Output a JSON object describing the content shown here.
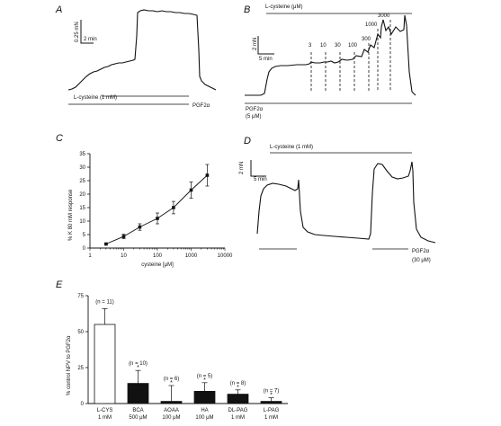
{
  "panels": {
    "A": {
      "label": "A",
      "scale_y": "0.25 mN",
      "scale_x": "2 min",
      "bar1_label": "L-cysteine (1 mM)",
      "bar2_label": "PGF2α"
    },
    "B": {
      "label": "B",
      "top_bar_label": "L-cysteine (μM)",
      "scale_y": "2 mN",
      "scale_x": "5 min",
      "concentrations": [
        "3",
        "10",
        "30",
        "100",
        "300",
        "1000",
        "3000"
      ],
      "bottom_label_1": "PGF2α",
      "bottom_label_2": "(5 μM)"
    },
    "C": {
      "label": "C",
      "ylabel": "% K 80 mM response",
      "xlabel": "cysteine [μM]"
    },
    "D": {
      "label": "D",
      "top_bar_label": "L-cysteine (1 mM)",
      "scale_y": "2 mN",
      "scale_x": "5 min",
      "bottom_label_1": "PGF2α",
      "bottom_label_2": "(30 μM)"
    },
    "E": {
      "label": "E",
      "ylabel": "% control NPV to PGF2α"
    }
  },
  "chart_data": [
    {
      "panel": "C",
      "type": "line",
      "x_scale": "log",
      "xlabel": "cysteine [μM]",
      "ylabel": "% K 80 mM response",
      "xlim": [
        1,
        10000
      ],
      "ylim": [
        0,
        35
      ],
      "x_ticks": [
        1,
        10,
        100,
        1000,
        10000
      ],
      "x_tick_labels": [
        "1",
        "10",
        "100",
        "1000",
        "10000"
      ],
      "y_ticks": [
        0,
        5,
        10,
        15,
        20,
        25,
        30,
        35
      ],
      "x": [
        3,
        10,
        30,
        100,
        300,
        1000,
        3000
      ],
      "y": [
        1.5,
        4.3,
        7.8,
        11.0,
        15.0,
        21.5,
        27.0
      ],
      "err": [
        0.4,
        0.8,
        1.2,
        2.0,
        2.3,
        3.0,
        4.0
      ]
    },
    {
      "panel": "E",
      "type": "bar",
      "ylim": [
        0,
        75
      ],
      "y_ticks": [
        0,
        25,
        50,
        75
      ],
      "categories": [
        "L-CYS",
        "BCA",
        "AOAA",
        "HA",
        "DL-PAG",
        "L-PAG"
      ],
      "doses": [
        "1 mM",
        "500 μM",
        "100 μM",
        "100 μM",
        "1 mM",
        "1 mM"
      ],
      "n_labels": [
        "(n = 11)",
        "(n = 10)",
        "(n = 6)",
        "(n = 5)",
        "(n = 8)",
        "(n = 7)"
      ],
      "values": [
        55,
        14,
        1.5,
        8.5,
        6.5,
        1.5
      ],
      "err": [
        11,
        9,
        11,
        6,
        3,
        2.5
      ],
      "fills": [
        "#ffffff",
        "#111111",
        "#111111",
        "#111111",
        "#111111",
        "#111111"
      ],
      "significance": [
        "",
        "*",
        "*",
        "*",
        "*",
        "*"
      ]
    }
  ]
}
